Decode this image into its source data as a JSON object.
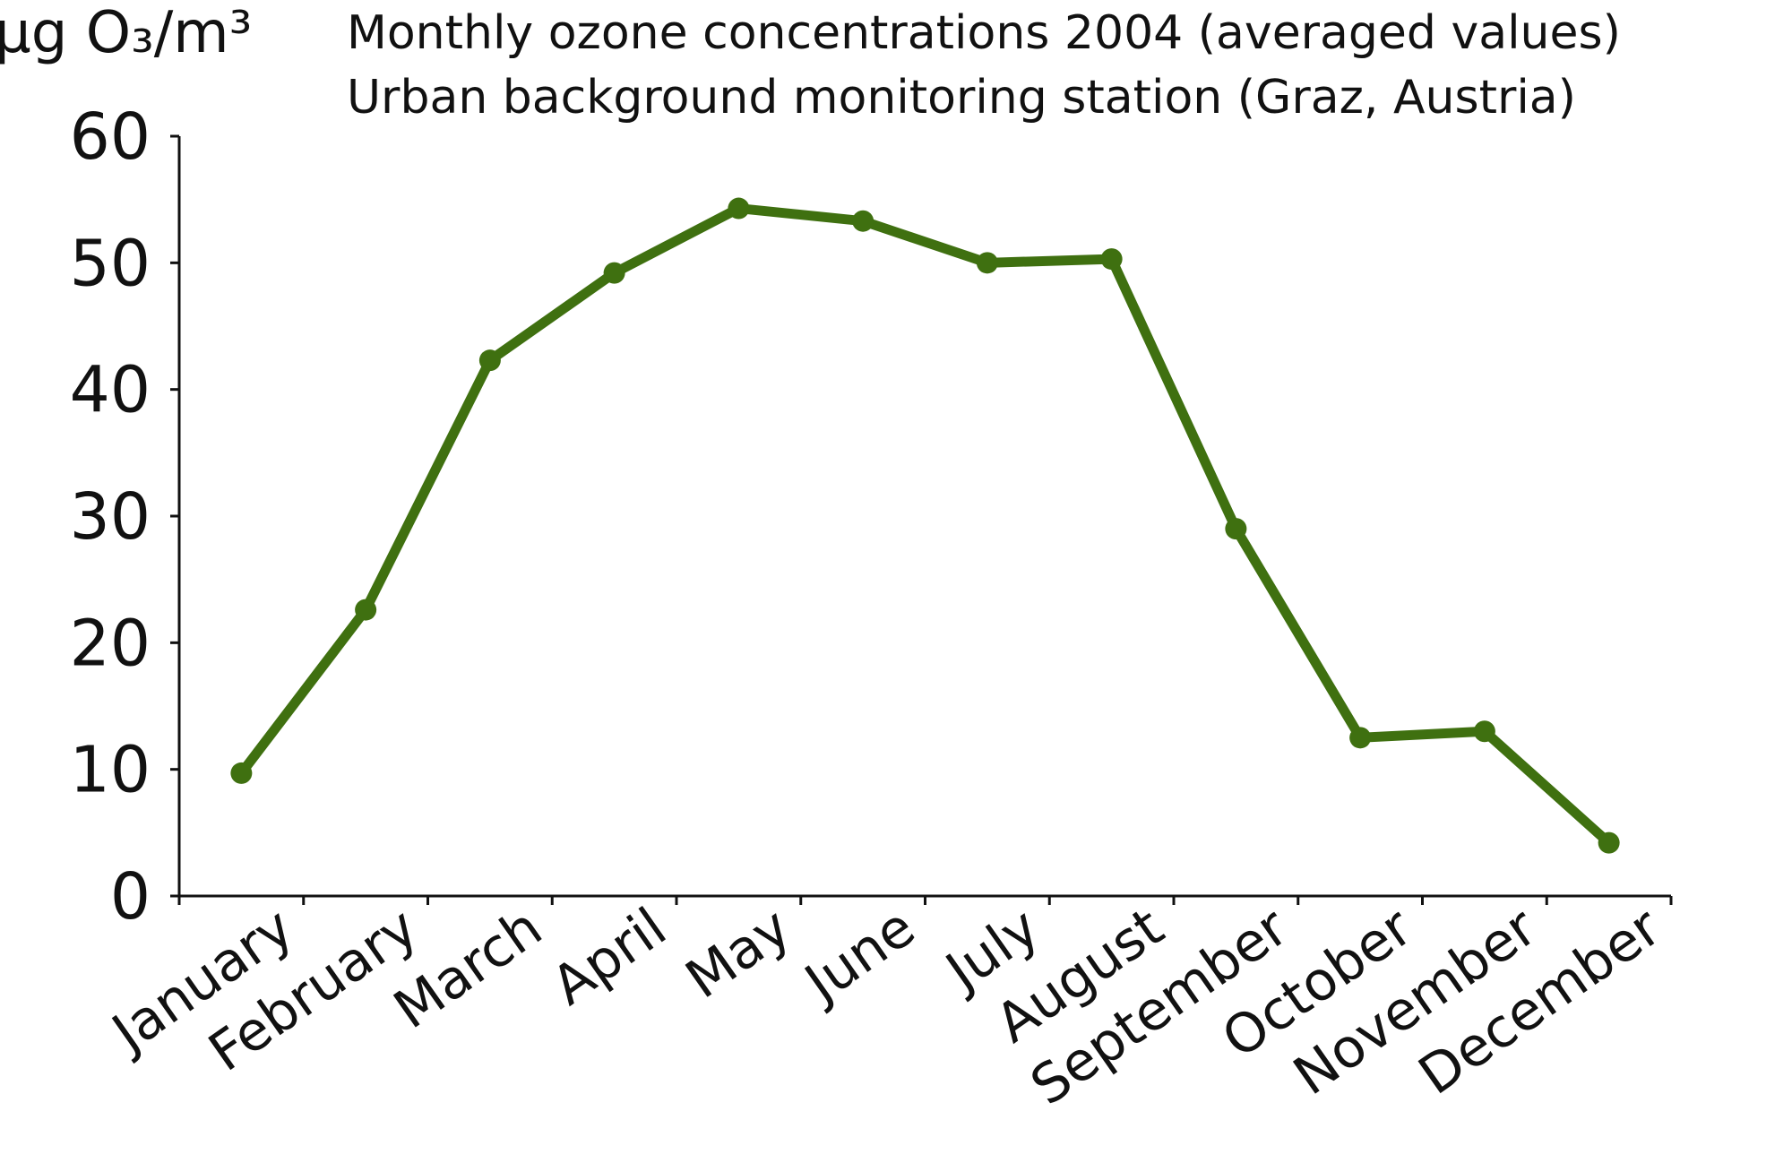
{
  "chart_data": {
    "type": "line",
    "title": "Monthly ozone concentrations 2004 (averaged values)",
    "subtitle": "Urban background monitoring station (Graz, Austria)",
    "y_label": "µg O₃/m³",
    "categories": [
      "January",
      "February",
      "March",
      "April",
      "May",
      "June",
      "July",
      "August",
      "September",
      "October",
      "November",
      "December"
    ],
    "values": [
      9.7,
      22.6,
      42.3,
      49.2,
      54.3,
      53.3,
      50.0,
      50.3,
      29.0,
      12.5,
      13.0,
      4.2
    ],
    "color": "#3f7010",
    "ylim": [
      0,
      60
    ],
    "yticks": [
      0,
      10,
      20,
      30,
      40,
      50,
      60
    ],
    "grid": false
  }
}
